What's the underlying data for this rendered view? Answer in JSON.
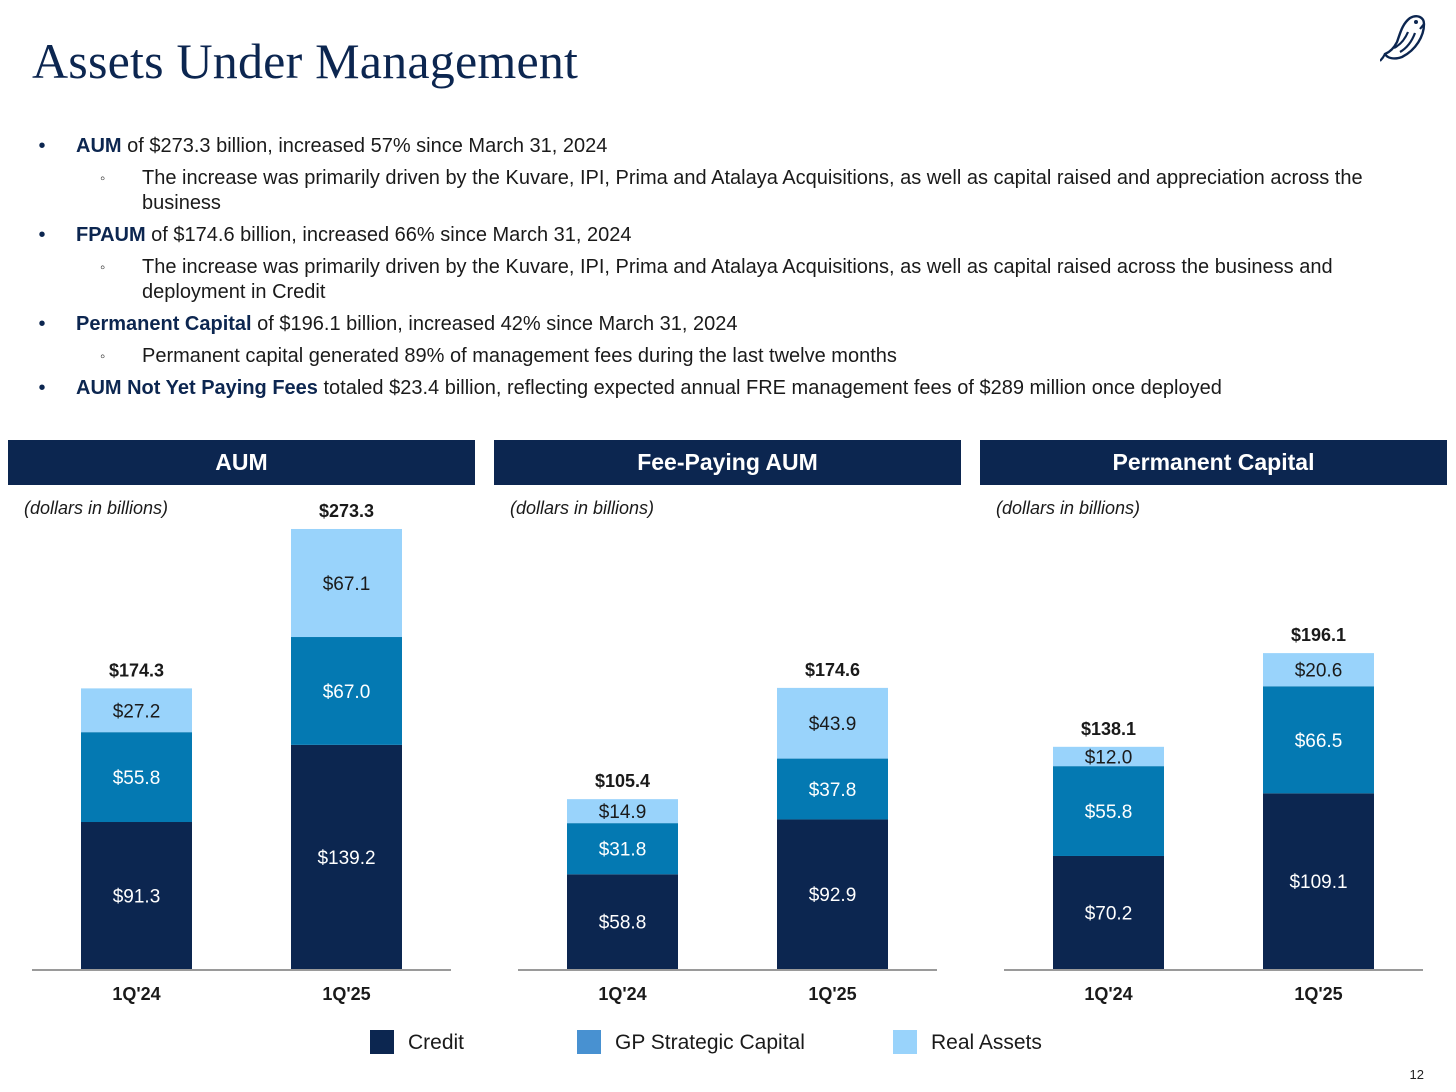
{
  "title": "Assets Under Management",
  "icons": {
    "logo": "bird-logo-icon",
    "bullet": "bullet-icon",
    "sub_bullet": "hollow-bullet-icon"
  },
  "bullets": [
    {
      "lead": "AUM",
      "text": " of $273.3 billion, increased 57% since March 31, 2024",
      "sub": [
        "The increase was primarily driven by the Kuvare, IPI, Prima and Atalaya Acquisitions, as well as capital raised and appreciation across the business"
      ]
    },
    {
      "lead": "FPAUM",
      "text": " of $174.6 billion, increased 66% since March 31, 2024",
      "sub": [
        "The increase was primarily driven by the Kuvare, IPI, Prima and Atalaya Acquisitions, as well as capital raised across the business and deployment in Credit"
      ]
    },
    {
      "lead": "Permanent Capital",
      "text": " of $196.1 billion, increased 42% since March 31, 2024",
      "sub": [
        "Permanent capital generated 89% of management fees during the last twelve months"
      ]
    },
    {
      "lead": "AUM Not Yet Paying Fees",
      "text": " totaled $23.4 billion, reflecting expected annual FRE management fees of $289 million once deployed",
      "sub": []
    }
  ],
  "colors": {
    "credit": "#0c2650",
    "gp_strategic_capital": "#0479b2",
    "real_assets": "#99d3fb",
    "header": "#0c2650"
  },
  "legend": [
    "Credit",
    "GP Strategic Capital",
    "Real Assets"
  ],
  "legend_colors": [
    "#0c2650",
    "#4891d1",
    "#99d3fb"
  ],
  "page_number": "12",
  "chart_data": [
    {
      "type": "bar",
      "stacked": true,
      "title": "AUM",
      "note": "(dollars in billions)",
      "categories": [
        "1Q'24",
        "1Q'25"
      ],
      "series": [
        {
          "name": "Credit",
          "values": [
            91.3,
            139.2
          ],
          "labels": [
            "$91.3",
            "$139.2"
          ]
        },
        {
          "name": "GP Strategic Capital",
          "values": [
            55.8,
            67.0
          ],
          "labels": [
            "$55.8",
            "$67.0"
          ]
        },
        {
          "name": "Real Assets",
          "values": [
            27.2,
            67.1
          ],
          "labels": [
            "$27.2",
            "$67.1"
          ]
        }
      ],
      "totals": [
        174.3,
        273.3
      ],
      "total_labels": [
        "$174.3",
        "$273.3"
      ]
    },
    {
      "type": "bar",
      "stacked": true,
      "title": "Fee-Paying AUM",
      "note": "(dollars in billions)",
      "categories": [
        "1Q'24",
        "1Q'25"
      ],
      "series": [
        {
          "name": "Credit",
          "values": [
            58.8,
            92.9
          ],
          "labels": [
            "$58.8",
            "$92.9"
          ]
        },
        {
          "name": "GP Strategic Capital",
          "values": [
            31.8,
            37.8
          ],
          "labels": [
            "$31.8",
            "$37.8"
          ]
        },
        {
          "name": "Real Assets",
          "values": [
            14.9,
            43.9
          ],
          "labels": [
            "$14.9",
            "$43.9"
          ]
        }
      ],
      "totals": [
        105.4,
        174.6
      ],
      "total_labels": [
        "$105.4",
        "$174.6"
      ]
    },
    {
      "type": "bar",
      "stacked": true,
      "title": "Permanent Capital",
      "note": "(dollars in billions)",
      "categories": [
        "1Q'24",
        "1Q'25"
      ],
      "series": [
        {
          "name": "Credit",
          "values": [
            70.2,
            109.1
          ],
          "labels": [
            "$70.2",
            "$109.1"
          ]
        },
        {
          "name": "GP Strategic Capital",
          "values": [
            55.8,
            66.5
          ],
          "labels": [
            "$55.8",
            "$66.5"
          ]
        },
        {
          "name": "Real Assets",
          "values": [
            12.0,
            20.6
          ],
          "labels": [
            "$12.0",
            "$20.6"
          ]
        }
      ],
      "totals": [
        138.1,
        196.1
      ],
      "total_labels": [
        "$138.1",
        "$196.1"
      ]
    }
  ]
}
